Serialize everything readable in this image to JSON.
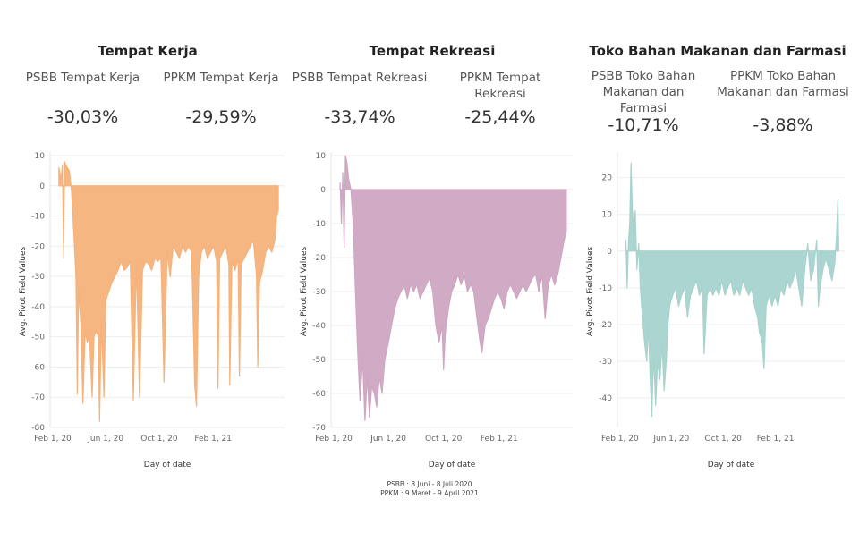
{
  "footnote": {
    "line1": "PSBB : 8 Juni - 8 Juli 2020",
    "line2": "PPKM : 9 Maret - 9 April 2021"
  },
  "panels": [
    {
      "title": "Tempat Kerja",
      "kpis": [
        {
          "label": "PSBB Tempat Kerja",
          "value": "-30,03%"
        },
        {
          "label": "PPKM Tempat Kerja",
          "value": "-29,59%"
        }
      ]
    },
    {
      "title": "Tempat Rekreasi",
      "kpis": [
        {
          "label": "PSBB Tempat Rekreasi",
          "value": "-33,74%"
        },
        {
          "label": "PPKM Tempat Rekreasi",
          "value": "-25,44%"
        }
      ]
    },
    {
      "title": "Toko Bahan Makanan dan Farmasi",
      "kpis": [
        {
          "label": "PSBB Toko Bahan Makanan dan Farmasi",
          "value": "-10,71%"
        },
        {
          "label": "PPKM Toko Bahan Makanan dan Farmasi",
          "value": "-3,88%"
        }
      ]
    }
  ],
  "chart_data": [
    {
      "type": "area",
      "color": "#f5b27a",
      "xlabel": "Day of date",
      "ylabel": "Avg. Pivot Field Values",
      "ylim": [
        -80,
        10
      ],
      "yticks": [
        10,
        0,
        -10,
        -20,
        -30,
        -40,
        -50,
        -60,
        -70,
        -80
      ],
      "xticks": [
        "Feb 1, 20",
        "Jun 1, 20",
        "Oct 1, 20",
        "Feb 1, 21"
      ],
      "x_range": [
        "2020-02-15",
        "2021-06-30"
      ],
      "grid": true,
      "points": [
        [
          "2020-02-15",
          6
        ],
        [
          "2020-02-20",
          2
        ],
        [
          "2020-02-23",
          7
        ],
        [
          "2020-02-26",
          -24
        ],
        [
          "2020-02-28",
          8
        ],
        [
          "2020-03-05",
          6
        ],
        [
          "2020-03-10",
          5
        ],
        [
          "2020-03-15",
          -2
        ],
        [
          "2020-03-20",
          -15
        ],
        [
          "2020-03-25",
          -30
        ],
        [
          "2020-03-28",
          -69
        ],
        [
          "2020-03-31",
          -35
        ],
        [
          "2020-04-05",
          -45
        ],
        [
          "2020-04-10",
          -72
        ],
        [
          "2020-04-15",
          -48
        ],
        [
          "2020-04-20",
          -52
        ],
        [
          "2020-04-25",
          -50
        ],
        [
          "2020-05-01",
          -70
        ],
        [
          "2020-05-05",
          -50
        ],
        [
          "2020-05-10",
          -48
        ],
        [
          "2020-05-15",
          -50
        ],
        [
          "2020-05-18",
          -78
        ],
        [
          "2020-05-22",
          -45
        ],
        [
          "2020-05-28",
          -70
        ],
        [
          "2020-06-01",
          -38
        ],
        [
          "2020-06-08",
          -35
        ],
        [
          "2020-06-15",
          -32
        ],
        [
          "2020-06-22",
          -30
        ],
        [
          "2020-06-29",
          -28
        ],
        [
          "2020-07-06",
          -25
        ],
        [
          "2020-07-13",
          -28
        ],
        [
          "2020-07-20",
          -27
        ],
        [
          "2020-07-27",
          -25
        ],
        [
          "2020-08-03",
          -71
        ],
        [
          "2020-08-10",
          -25
        ],
        [
          "2020-08-17",
          -70
        ],
        [
          "2020-08-24",
          -28
        ],
        [
          "2020-08-31",
          -25
        ],
        [
          "2020-09-07",
          -26
        ],
        [
          "2020-09-14",
          -28
        ],
        [
          "2020-09-21",
          -24
        ],
        [
          "2020-09-28",
          -25
        ],
        [
          "2020-10-05",
          -24
        ],
        [
          "2020-10-12",
          -65
        ],
        [
          "2020-10-19",
          -22
        ],
        [
          "2020-10-26",
          -30
        ],
        [
          "2020-11-02",
          -20
        ],
        [
          "2020-11-09",
          -22
        ],
        [
          "2020-11-16",
          -24
        ],
        [
          "2020-11-23",
          -20
        ],
        [
          "2020-11-30",
          -22
        ],
        [
          "2020-12-07",
          -20
        ],
        [
          "2020-12-14",
          -22
        ],
        [
          "2020-12-21",
          -66
        ],
        [
          "2020-12-25",
          -73
        ],
        [
          "2020-12-30",
          -30
        ],
        [
          "2021-01-05",
          -22
        ],
        [
          "2021-01-12",
          -20
        ],
        [
          "2021-01-19",
          -24
        ],
        [
          "2021-01-26",
          -22
        ],
        [
          "2021-02-02",
          -20
        ],
        [
          "2021-02-09",
          -25
        ],
        [
          "2021-02-12",
          -67
        ],
        [
          "2021-02-16",
          -24
        ],
        [
          "2021-02-23",
          -22
        ],
        [
          "2021-03-02",
          -20
        ],
        [
          "2021-03-09",
          -26
        ],
        [
          "2021-03-11",
          -66
        ],
        [
          "2021-03-16",
          -25
        ],
        [
          "2021-03-23",
          -28
        ],
        [
          "2021-03-30",
          -24
        ],
        [
          "2021-04-02",
          -63
        ],
        [
          "2021-04-06",
          -26
        ],
        [
          "2021-04-13",
          -24
        ],
        [
          "2021-04-20",
          -22
        ],
        [
          "2021-04-27",
          -20
        ],
        [
          "2021-05-04",
          -18
        ],
        [
          "2021-05-11",
          -30
        ],
        [
          "2021-05-14",
          -60
        ],
        [
          "2021-05-18",
          -32
        ],
        [
          "2021-05-25",
          -28
        ],
        [
          "2021-06-01",
          -22
        ],
        [
          "2021-06-08",
          -20
        ],
        [
          "2021-06-15",
          -22
        ],
        [
          "2021-06-22",
          -18
        ],
        [
          "2021-06-26",
          -10
        ],
        [
          "2021-06-30",
          -8
        ]
      ]
    },
    {
      "type": "area",
      "color": "#cfa6c2",
      "xlabel": "Day of date",
      "ylabel": "Avg. Pivot Field Values",
      "ylim": [
        -70,
        10
      ],
      "yticks": [
        10,
        0,
        -10,
        -20,
        -30,
        -40,
        -50,
        -60,
        -70
      ],
      "xticks": [
        "Feb 1, 20",
        "Jun 1, 20",
        "Oct 1, 20",
        "Feb 1, 21"
      ],
      "x_range": [
        "2020-02-15",
        "2021-06-30"
      ],
      "grid": true,
      "points": [
        [
          "2020-02-15",
          2
        ],
        [
          "2020-02-18",
          -10
        ],
        [
          "2020-02-21",
          5
        ],
        [
          "2020-02-24",
          -17
        ],
        [
          "2020-02-27",
          10
        ],
        [
          "2020-03-01",
          8
        ],
        [
          "2020-03-05",
          3
        ],
        [
          "2020-03-10",
          0
        ],
        [
          "2020-03-15",
          -10
        ],
        [
          "2020-03-20",
          -30
        ],
        [
          "2020-03-25",
          -48
        ],
        [
          "2020-03-30",
          -62
        ],
        [
          "2020-04-05",
          -50
        ],
        [
          "2020-04-10",
          -68
        ],
        [
          "2020-04-15",
          -55
        ],
        [
          "2020-04-20",
          -67
        ],
        [
          "2020-04-25",
          -58
        ],
        [
          "2020-05-01",
          -60
        ],
        [
          "2020-05-06",
          -64
        ],
        [
          "2020-05-12",
          -55
        ],
        [
          "2020-05-18",
          -60
        ],
        [
          "2020-05-24",
          -50
        ],
        [
          "2020-06-01",
          -45
        ],
        [
          "2020-06-08",
          -40
        ],
        [
          "2020-06-15",
          -35
        ],
        [
          "2020-06-22",
          -32
        ],
        [
          "2020-06-29",
          -30
        ],
        [
          "2020-07-06",
          -28
        ],
        [
          "2020-07-13",
          -32
        ],
        [
          "2020-07-20",
          -28
        ],
        [
          "2020-07-27",
          -30
        ],
        [
          "2020-08-03",
          -28
        ],
        [
          "2020-08-10",
          -32
        ],
        [
          "2020-08-17",
          -30
        ],
        [
          "2020-08-24",
          -28
        ],
        [
          "2020-08-31",
          -26
        ],
        [
          "2020-09-07",
          -30
        ],
        [
          "2020-09-14",
          -40
        ],
        [
          "2020-09-21",
          -45
        ],
        [
          "2020-09-28",
          -40
        ],
        [
          "2020-10-01",
          -53
        ],
        [
          "2020-10-05",
          -42
        ],
        [
          "2020-10-12",
          -35
        ],
        [
          "2020-10-19",
          -30
        ],
        [
          "2020-10-26",
          -28
        ],
        [
          "2020-11-02",
          -25
        ],
        [
          "2020-11-09",
          -28
        ],
        [
          "2020-11-16",
          -25
        ],
        [
          "2020-11-23",
          -30
        ],
        [
          "2020-11-30",
          -28
        ],
        [
          "2020-12-07",
          -30
        ],
        [
          "2020-12-14",
          -38
        ],
        [
          "2020-12-21",
          -45
        ],
        [
          "2020-12-25",
          -48
        ],
        [
          "2021-01-01",
          -40
        ],
        [
          "2021-01-08",
          -38
        ],
        [
          "2021-01-15",
          -35
        ],
        [
          "2021-01-22",
          -32
        ],
        [
          "2021-01-29",
          -30
        ],
        [
          "2021-02-05",
          -32
        ],
        [
          "2021-02-12",
          -35
        ],
        [
          "2021-02-19",
          -30
        ],
        [
          "2021-02-26",
          -28
        ],
        [
          "2021-03-05",
          -30
        ],
        [
          "2021-03-12",
          -32
        ],
        [
          "2021-03-19",
          -30
        ],
        [
          "2021-03-26",
          -28
        ],
        [
          "2021-04-02",
          -30
        ],
        [
          "2021-04-09",
          -28
        ],
        [
          "2021-04-16",
          -26
        ],
        [
          "2021-04-23",
          -25
        ],
        [
          "2021-04-30",
          -30
        ],
        [
          "2021-05-07",
          -25
        ],
        [
          "2021-05-14",
          -38
        ],
        [
          "2021-05-21",
          -28
        ],
        [
          "2021-05-28",
          -25
        ],
        [
          "2021-06-04",
          -28
        ],
        [
          "2021-06-11",
          -25
        ],
        [
          "2021-06-18",
          -20
        ],
        [
          "2021-06-25",
          -15
        ],
        [
          "2021-06-30",
          -12
        ]
      ]
    },
    {
      "type": "area",
      "color": "#a7d3cd",
      "xlabel": "Day of date",
      "ylabel": "Avg. Pivot Field Values",
      "ylim": [
        -48,
        26
      ],
      "yticks": [
        20,
        10,
        0,
        -10,
        -20,
        -30,
        -40
      ],
      "xticks": [
        "Feb 1, 20",
        "Jun 1, 20",
        "Oct 1, 20",
        "Feb 1, 21"
      ],
      "x_range": [
        "2020-02-15",
        "2021-06-30"
      ],
      "grid": true,
      "points": [
        [
          "2020-02-15",
          3
        ],
        [
          "2020-02-18",
          -10
        ],
        [
          "2020-02-21",
          2
        ],
        [
          "2020-02-24",
          8
        ],
        [
          "2020-02-27",
          24
        ],
        [
          "2020-03-01",
          12
        ],
        [
          "2020-03-04",
          5
        ],
        [
          "2020-03-08",
          11
        ],
        [
          "2020-03-12",
          -5
        ],
        [
          "2020-03-16",
          2
        ],
        [
          "2020-03-20",
          -10
        ],
        [
          "2020-03-25",
          -18
        ],
        [
          "2020-03-30",
          -25
        ],
        [
          "2020-04-04",
          -30
        ],
        [
          "2020-04-08",
          -20
        ],
        [
          "2020-04-12",
          -35
        ],
        [
          "2020-04-16",
          -45
        ],
        [
          "2020-04-20",
          -28
        ],
        [
          "2020-04-25",
          -42
        ],
        [
          "2020-04-30",
          -30
        ],
        [
          "2020-05-05",
          -35
        ],
        [
          "2020-05-10",
          -25
        ],
        [
          "2020-05-15",
          -38
        ],
        [
          "2020-05-20",
          -30
        ],
        [
          "2020-05-24",
          -20
        ],
        [
          "2020-05-28",
          -15
        ],
        [
          "2020-06-04",
          -12
        ],
        [
          "2020-06-11",
          -10
        ],
        [
          "2020-06-18",
          -15
        ],
        [
          "2020-06-25",
          -12
        ],
        [
          "2020-07-02",
          -10
        ],
        [
          "2020-07-09",
          -18
        ],
        [
          "2020-07-16",
          -12
        ],
        [
          "2020-07-23",
          -10
        ],
        [
          "2020-07-30",
          -8
        ],
        [
          "2020-08-06",
          -12
        ],
        [
          "2020-08-13",
          -10
        ],
        [
          "2020-08-17",
          -28
        ],
        [
          "2020-08-24",
          -12
        ],
        [
          "2020-08-31",
          -10
        ],
        [
          "2020-09-07",
          -12
        ],
        [
          "2020-09-14",
          -10
        ],
        [
          "2020-09-21",
          -12
        ],
        [
          "2020-09-28",
          -8
        ],
        [
          "2020-10-05",
          -12
        ],
        [
          "2020-10-12",
          -10
        ],
        [
          "2020-10-19",
          -8
        ],
        [
          "2020-10-26",
          -12
        ],
        [
          "2020-11-02",
          -10
        ],
        [
          "2020-11-09",
          -12
        ],
        [
          "2020-11-16",
          -8
        ],
        [
          "2020-11-23",
          -10
        ],
        [
          "2020-11-30",
          -12
        ],
        [
          "2020-12-07",
          -10
        ],
        [
          "2020-12-14",
          -15
        ],
        [
          "2020-12-21",
          -18
        ],
        [
          "2020-12-25",
          -22
        ],
        [
          "2021-01-01",
          -25
        ],
        [
          "2021-01-05",
          -32
        ],
        [
          "2021-01-10",
          -15
        ],
        [
          "2021-01-17",
          -12
        ],
        [
          "2021-01-24",
          -15
        ],
        [
          "2021-01-31",
          -12
        ],
        [
          "2021-02-07",
          -15
        ],
        [
          "2021-02-14",
          -10
        ],
        [
          "2021-02-21",
          -12
        ],
        [
          "2021-02-28",
          -8
        ],
        [
          "2021-03-07",
          -10
        ],
        [
          "2021-03-14",
          -8
        ],
        [
          "2021-03-21",
          -5
        ],
        [
          "2021-03-28",
          -10
        ],
        [
          "2021-04-04",
          -15
        ],
        [
          "2021-04-11",
          -5
        ],
        [
          "2021-04-18",
          2
        ],
        [
          "2021-04-25",
          -8
        ],
        [
          "2021-05-02",
          -5
        ],
        [
          "2021-05-09",
          3
        ],
        [
          "2021-05-13",
          -15
        ],
        [
          "2021-05-17",
          -10
        ],
        [
          "2021-05-24",
          -5
        ],
        [
          "2021-05-31",
          -2
        ],
        [
          "2021-06-07",
          -5
        ],
        [
          "2021-06-14",
          -8
        ],
        [
          "2021-06-21",
          -3
        ],
        [
          "2021-06-25",
          5
        ],
        [
          "2021-06-28",
          14
        ],
        [
          "2021-06-30",
          0
        ]
      ]
    }
  ]
}
